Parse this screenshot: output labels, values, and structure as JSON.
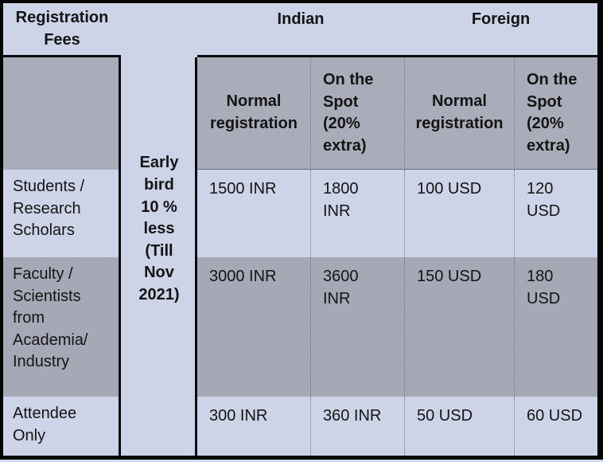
{
  "table": {
    "corner_header": "Registration\nFees",
    "group_headers": {
      "indian": "Indian",
      "foreign": "Foreign"
    },
    "early_bird_note": "Early\nbird\n10 %\nless\n(Till\nNov\n2021)",
    "column_headers": {
      "indian_normal": "Normal\nregistration",
      "indian_onspot": "On the\nSpot\n(20%\nextra)",
      "foreign_normal": "Normal\nregistration",
      "foreign_onspot": "On the\nSpot\n(20%\nextra)"
    },
    "rows": [
      {
        "label": "Students /\nResearch\nScholars",
        "indian_normal": "1500 INR",
        "indian_onspot": "1800\nINR",
        "foreign_normal": "100 USD",
        "foreign_onspot": "120\nUSD"
      },
      {
        "label": "Faculty /\nScientists\nfrom\nAcademia/\nIndustry",
        "indian_normal": "3000 INR",
        "indian_onspot": "3600\nINR",
        "foreign_normal": "150 USD",
        "foreign_onspot": "180\nUSD"
      },
      {
        "label": "Attendee\nOnly",
        "indian_normal": "300 INR",
        "indian_onspot": "360 INR",
        "foreign_normal": "50 USD",
        "foreign_onspot": "60 USD"
      }
    ],
    "colors": {
      "light_cell": "#cdd4e8",
      "gray_header_cell": "#a9adb9",
      "gray_row_cell": "#a5a9b5",
      "border": "#050505",
      "text": "#141414"
    }
  }
}
